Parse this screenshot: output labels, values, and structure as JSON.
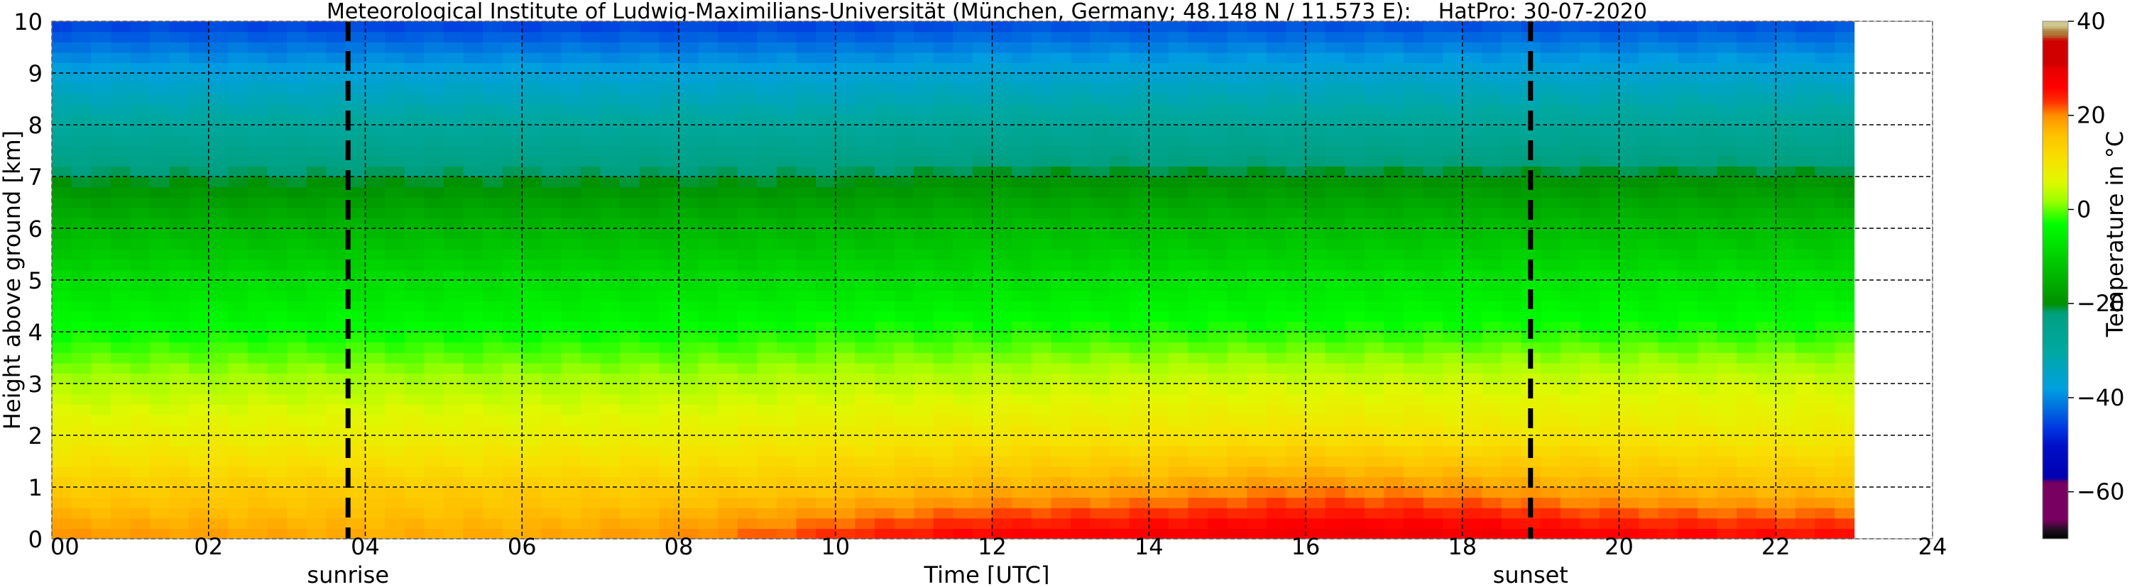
{
  "chart_data": {
    "type": "heatmap",
    "title": "Meteorological Institute of Ludwig-Maximilians-Universität (München, Germany; 48.148 N / 11.573 E):    HatPro: 30-07-2020",
    "xlabel": "Time [UTC]",
    "ylabel": "Height above ground [km]",
    "xlim": [
      0,
      24
    ],
    "ylim": [
      0,
      10
    ],
    "xticks": [
      "00",
      "02",
      "04",
      "06",
      "08",
      "10",
      "12",
      "14",
      "16",
      "18",
      "20",
      "22",
      "24"
    ],
    "yticks": [
      "0",
      "1",
      "2",
      "3",
      "4",
      "5",
      "6",
      "7",
      "8",
      "9",
      "10"
    ],
    "grid": true,
    "data_end_time_h": 23,
    "times_h": [
      0,
      2,
      4,
      6,
      8,
      10,
      12,
      14,
      16,
      18,
      20,
      22,
      23
    ],
    "heights_km": [
      0,
      1,
      2,
      3,
      4,
      5,
      6,
      7,
      8,
      9,
      10
    ],
    "temperature_c": [
      [
        20,
        19,
        18,
        18,
        20,
        24,
        27,
        28,
        29,
        29,
        27,
        26,
        26
      ],
      [
        14,
        14,
        14,
        14,
        14,
        15,
        17,
        18,
        20,
        19,
        17,
        16,
        16
      ],
      [
        8,
        8,
        8,
        8,
        8,
        9,
        10,
        10,
        11,
        10,
        10,
        9,
        9
      ],
      [
        3,
        3,
        3,
        3,
        3,
        4,
        4,
        5,
        5,
        5,
        5,
        5,
        5
      ],
      [
        -3,
        -3,
        -3,
        -3,
        -3,
        -2,
        -2,
        -2,
        -2,
        -2,
        -2,
        -2,
        -2
      ],
      [
        -8,
        -8,
        -8,
        -8,
        -8,
        -8,
        -8,
        -7,
        -7,
        -7,
        -7,
        -7,
        -7
      ],
      [
        -14,
        -14,
        -14,
        -14,
        -14,
        -14,
        -13,
        -13,
        -13,
        -13,
        -13,
        -13,
        -13
      ],
      [
        -21,
        -21,
        -21,
        -21,
        -21,
        -21,
        -20,
        -20,
        -20,
        -20,
        -20,
        -20,
        -20
      ],
      [
        -29,
        -29,
        -29,
        -29,
        -29,
        -29,
        -28,
        -28,
        -28,
        -28,
        -28,
        -28,
        -28
      ],
      [
        -37,
        -37,
        -37,
        -37,
        -37,
        -37,
        -36,
        -36,
        -36,
        -36,
        -36,
        -36,
        -36
      ],
      [
        -46,
        -46,
        -46,
        -46,
        -46,
        -46,
        -45,
        -45,
        -45,
        -45,
        -45,
        -45,
        -45
      ]
    ],
    "annotations": [
      {
        "label": "sunrise",
        "time_h": 3.78
      },
      {
        "label": "sunset",
        "time_h": 18.87
      }
    ],
    "colorbar": {
      "label_text": "Temperature in °C",
      "range": [
        -70,
        40
      ],
      "ticks": [
        "40",
        "20",
        "0",
        "−20",
        "−40",
        "−60"
      ],
      "tick_values": [
        40,
        20,
        0,
        -20,
        -40,
        -60
      ],
      "stops": [
        [
          -70,
          "#000000"
        ],
        [
          -68,
          "#201020"
        ],
        [
          -66,
          "#780060"
        ],
        [
          -58,
          "#780060"
        ],
        [
          -57,
          "#0000b0"
        ],
        [
          -50,
          "#0010c8"
        ],
        [
          -47,
          "#0030e0"
        ],
        [
          -42,
          "#0070e0"
        ],
        [
          -38,
          "#00a0e0"
        ],
        [
          -30,
          "#00a8a0"
        ],
        [
          -22,
          "#00a080"
        ],
        [
          -20,
          "#009000"
        ],
        [
          -10,
          "#00d000"
        ],
        [
          -3,
          "#00ff00"
        ],
        [
          2,
          "#a0ff00"
        ],
        [
          6,
          "#e0f800"
        ],
        [
          11,
          "#f8e000"
        ],
        [
          16,
          "#ffc000"
        ],
        [
          20,
          "#ff9000"
        ],
        [
          23,
          "#ff3000"
        ],
        [
          26,
          "#ff0000"
        ],
        [
          30,
          "#e80000"
        ],
        [
          31,
          "#d00000"
        ],
        [
          36,
          "#d00000"
        ],
        [
          37,
          "#b07030"
        ],
        [
          38,
          "#b08040"
        ],
        [
          39,
          "#d0c890"
        ],
        [
          40,
          "#d0c890"
        ]
      ]
    }
  }
}
